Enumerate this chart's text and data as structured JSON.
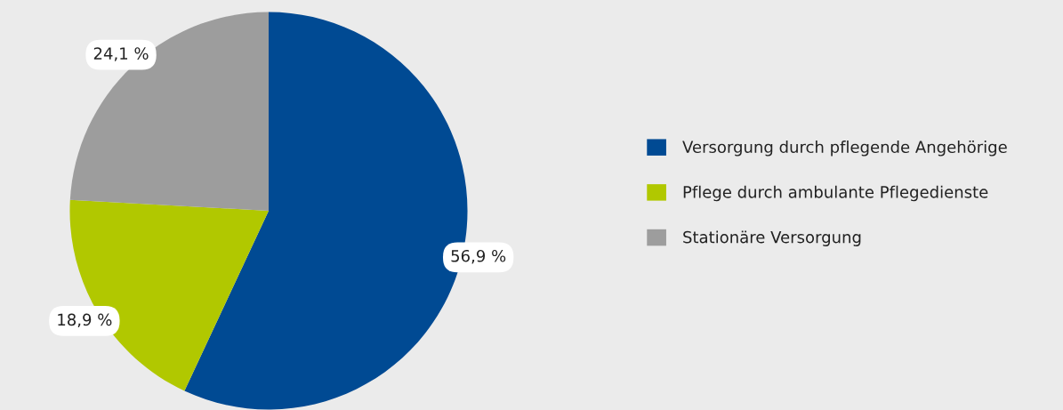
{
  "chart_data": {
    "type": "pie",
    "categories": [
      "Versorgung durch pflegende Angehörige",
      "Pflege durch ambulante Pflegedienste",
      "Stationäre Versorgung"
    ],
    "values": [
      56.9,
      18.9,
      24.1
    ],
    "colors": [
      "#004a93",
      "#b1c800",
      "#9d9d9d"
    ],
    "value_labels": [
      "56,9 %",
      "18,9 %",
      "24,1 %"
    ],
    "legend": "right"
  }
}
